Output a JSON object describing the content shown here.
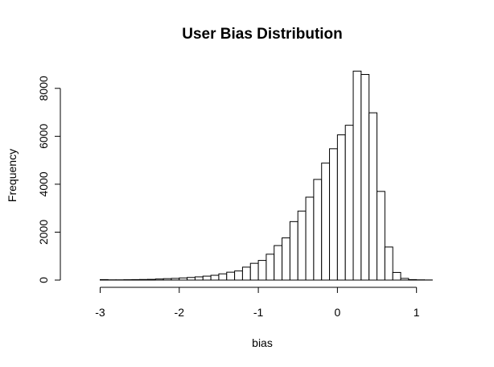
{
  "chart_data": {
    "type": "bar",
    "title": "User Bias Distribution",
    "xlabel": "bias",
    "ylabel": "Frequency",
    "xlim": [
      -3.3,
      1.4
    ],
    "ylim": [
      0,
      9000
    ],
    "x_ticks": [
      -3,
      -2,
      -1,
      0,
      1
    ],
    "x_tick_labels": [
      "-3",
      "-2",
      "-1",
      "0",
      "1"
    ],
    "y_ticks": [
      0,
      2000,
      4000,
      6000,
      8000
    ],
    "y_tick_labels": [
      "0",
      "2000",
      "4000",
      "6000",
      "8000"
    ],
    "grid": false,
    "legend": "none",
    "bin_width": 0.1,
    "bins": [
      {
        "x0": -3.0,
        "x1": -2.9,
        "value": 20
      },
      {
        "x0": -2.9,
        "x1": -2.8,
        "value": 10
      },
      {
        "x0": -2.8,
        "x1": -2.7,
        "value": 10
      },
      {
        "x0": -2.7,
        "x1": -2.6,
        "value": 15
      },
      {
        "x0": -2.6,
        "x1": -2.5,
        "value": 20
      },
      {
        "x0": -2.5,
        "x1": -2.4,
        "value": 25
      },
      {
        "x0": -2.4,
        "x1": -2.3,
        "value": 30
      },
      {
        "x0": -2.3,
        "x1": -2.2,
        "value": 45
      },
      {
        "x0": -2.2,
        "x1": -2.1,
        "value": 60
      },
      {
        "x0": -2.1,
        "x1": -2.0,
        "value": 70
      },
      {
        "x0": -2.0,
        "x1": -1.9,
        "value": 90
      },
      {
        "x0": -1.9,
        "x1": -1.8,
        "value": 110
      },
      {
        "x0": -1.8,
        "x1": -1.7,
        "value": 135
      },
      {
        "x0": -1.7,
        "x1": -1.6,
        "value": 165
      },
      {
        "x0": -1.6,
        "x1": -1.5,
        "value": 200
      },
      {
        "x0": -1.5,
        "x1": -1.4,
        "value": 260
      },
      {
        "x0": -1.4,
        "x1": -1.3,
        "value": 330
      },
      {
        "x0": -1.3,
        "x1": -1.2,
        "value": 380
      },
      {
        "x0": -1.2,
        "x1": -1.1,
        "value": 540
      },
      {
        "x0": -1.1,
        "x1": -1.0,
        "value": 700
      },
      {
        "x0": -1.0,
        "x1": -0.9,
        "value": 820
      },
      {
        "x0": -0.9,
        "x1": -0.8,
        "value": 1080
      },
      {
        "x0": -0.8,
        "x1": -0.7,
        "value": 1440
      },
      {
        "x0": -0.7,
        "x1": -0.6,
        "value": 1760
      },
      {
        "x0": -0.6,
        "x1": -0.5,
        "value": 2440
      },
      {
        "x0": -0.5,
        "x1": -0.4,
        "value": 2880
      },
      {
        "x0": -0.4,
        "x1": -0.3,
        "value": 3460
      },
      {
        "x0": -0.3,
        "x1": -0.2,
        "value": 4200
      },
      {
        "x0": -0.2,
        "x1": -0.1,
        "value": 4880
      },
      {
        "x0": -0.1,
        "x1": 0.0,
        "value": 5480
      },
      {
        "x0": 0.0,
        "x1": 0.1,
        "value": 6060
      },
      {
        "x0": 0.1,
        "x1": 0.2,
        "value": 6460
      },
      {
        "x0": 0.2,
        "x1": 0.3,
        "value": 8720
      },
      {
        "x0": 0.3,
        "x1": 0.4,
        "value": 8580
      },
      {
        "x0": 0.4,
        "x1": 0.5,
        "value": 6980
      },
      {
        "x0": 0.5,
        "x1": 0.6,
        "value": 3700
      },
      {
        "x0": 0.6,
        "x1": 0.7,
        "value": 1380
      },
      {
        "x0": 0.7,
        "x1": 0.8,
        "value": 320
      },
      {
        "x0": 0.8,
        "x1": 0.9,
        "value": 70
      },
      {
        "x0": 0.9,
        "x1": 1.0,
        "value": 20
      },
      {
        "x0": 1.0,
        "x1": 1.1,
        "value": 10
      },
      {
        "x0": 1.1,
        "x1": 1.2,
        "value": 5
      }
    ]
  }
}
